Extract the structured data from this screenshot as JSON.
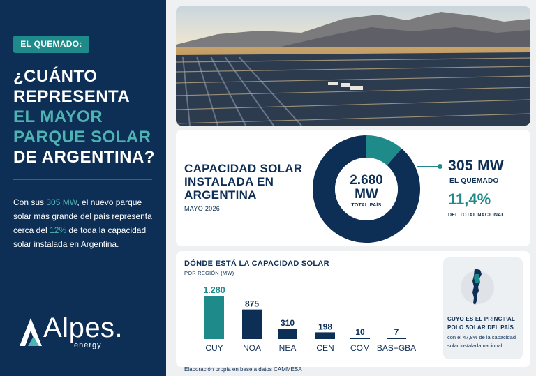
{
  "sidebar": {
    "tag": "EL QUEMADO:",
    "headline": [
      "¿CUÁNTO",
      "REPRESENTA",
      "EL MAYOR",
      "PARQUE SOLAR",
      "DE ARGENTINA?"
    ],
    "lede": {
      "a": "Con sus ",
      "b": "305 MW",
      "c": ", el nuevo parque solar más grande del país representa cerca del ",
      "d": "12%",
      "e": " de toda la capacidad solar instalada en Argentina."
    },
    "logo": {
      "word": "Alpes.",
      "sub": "energy"
    }
  },
  "capacity": {
    "title": [
      "CAPACIDAD SOLAR",
      "INSTALADA EN",
      "ARGENTINA"
    ],
    "date": "MAYO 2026",
    "total_value": "2.680",
    "total_unit": "MW",
    "total_label": "TOTAL PAÍS",
    "highlight_value": "305 MW",
    "highlight_label": "EL QUEMADO",
    "share_value": "11,4%",
    "share_label": "DEL TOTAL NACIONAL"
  },
  "regions": {
    "title": "DÓNDE ESTÁ LA CAPACIDAD SOLAR",
    "subtitle": "POR REGIÓN (MW)",
    "source": "Elaboración propia en base a datos CAMMESA"
  },
  "side_note": {
    "title": [
      "CUYO ES EL PRINCIPAL",
      "POLO SOLAR DEL PAÍS"
    ],
    "text": [
      "con el 47,8% de la capacidad",
      "solar instalada nacional."
    ]
  },
  "colors": {
    "navy": "#0d2e55",
    "teal": "#1e8a8a",
    "light_teal": "#4fb3b3"
  },
  "chart_data": [
    {
      "type": "pie",
      "labels": [
        "EL QUEMADO",
        ""
      ],
      "values": [
        305,
        2375
      ],
      "colors": [
        "#1e8a8a",
        "#0d2e55"
      ]
    },
    {
      "type": "bar",
      "title": "DÓNDE ESTÁ LA CAPACIDAD SOLAR",
      "subtitle": "POR REGIÓN (MW)",
      "categories": [
        "CUY",
        "NOA",
        "NEA",
        "CEN",
        "COM",
        "BAS+GBA"
      ],
      "values": [
        1280,
        875,
        310,
        198,
        10,
        7
      ],
      "value_labels": [
        "1.280",
        "875",
        "310",
        "198",
        "10",
        "7"
      ],
      "colors": [
        "#1e8a8a",
        "#0d2e55",
        "#0d2e55",
        "#0d2e55",
        "#0d2e55",
        "#0d2e55"
      ],
      "ylim": [
        0,
        1280
      ],
      "grid": false
    }
  ]
}
